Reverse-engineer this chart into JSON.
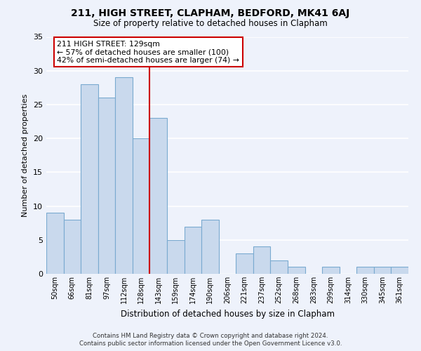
{
  "title": "211, HIGH STREET, CLAPHAM, BEDFORD, MK41 6AJ",
  "subtitle": "Size of property relative to detached houses in Clapham",
  "xlabel": "Distribution of detached houses by size in Clapham",
  "ylabel": "Number of detached properties",
  "categories": [
    "50sqm",
    "66sqm",
    "81sqm",
    "97sqm",
    "112sqm",
    "128sqm",
    "143sqm",
    "159sqm",
    "174sqm",
    "190sqm",
    "206sqm",
    "221sqm",
    "237sqm",
    "252sqm",
    "268sqm",
    "283sqm",
    "299sqm",
    "314sqm",
    "330sqm",
    "345sqm",
    "361sqm"
  ],
  "values": [
    9,
    8,
    28,
    26,
    29,
    20,
    23,
    5,
    7,
    8,
    0,
    3,
    4,
    2,
    1,
    0,
    1,
    0,
    1,
    1,
    1
  ],
  "bar_color": "#c9d9ed",
  "bar_edge_color": "#7aaad0",
  "vline_color": "#cc0000",
  "annotation_line1": "211 HIGH STREET: 129sqm",
  "annotation_line2": "← 57% of detached houses are smaller (100)",
  "annotation_line3": "42% of semi-detached houses are larger (74) →",
  "annotation_box_color": "#ffffff",
  "annotation_box_edge_color": "#cc0000",
  "ylim": [
    0,
    35
  ],
  "yticks": [
    0,
    5,
    10,
    15,
    20,
    25,
    30,
    35
  ],
  "background_color": "#eef2fb",
  "plot_bg_color": "#eef2fb",
  "grid_color": "#ffffff",
  "footer1": "Contains HM Land Registry data © Crown copyright and database right 2024.",
  "footer2": "Contains public sector information licensed under the Open Government Licence v3.0."
}
